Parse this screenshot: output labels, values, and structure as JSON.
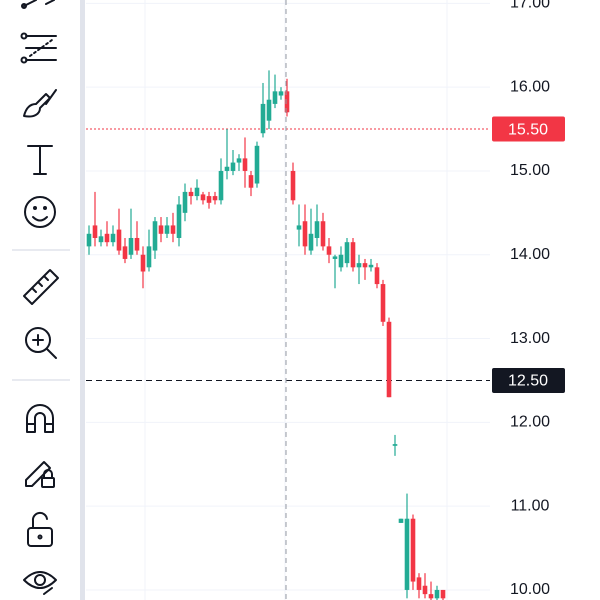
{
  "chart_data": {
    "type": "candlestick",
    "ylim": [
      9.88,
      17.04
    ],
    "yticks": [
      {
        "value": 17,
        "label": "17.00"
      },
      {
        "value": 16,
        "label": "16.00"
      },
      {
        "value": 15,
        "label": "15.00"
      },
      {
        "value": 14,
        "label": "14.00"
      },
      {
        "value": 13,
        "label": "13.00"
      },
      {
        "value": 12,
        "label": "12.00"
      },
      {
        "value": 11,
        "label": "11.00"
      },
      {
        "value": 10,
        "label": "10.00"
      }
    ],
    "grid": true,
    "up_color": "#22ab94",
    "down_color": "#f23645",
    "price_line": {
      "value": 15.5,
      "label": "15.50",
      "color": "#f23645"
    },
    "crosshair": {
      "value": 12.5,
      "label": "12.50",
      "color": "#131722"
    },
    "open": [
      14.1,
      14.35,
      14.15,
      14.25,
      14.15,
      14.3,
      14.1,
      14.0,
      14.2,
      14.0,
      13.85,
      14.05,
      14.35,
      14.25,
      14.35,
      14.2,
      14.5,
      14.75,
      14.7,
      14.72,
      14.7,
      14.7,
      14.65,
      15.0,
      15.0,
      15.1,
      15.15,
      14.95,
      14.85,
      15.45,
      15.6,
      15.8,
      15.9,
      15.95,
      15.0,
      14.3,
      14.4,
      14.05,
      14.2,
      14.4,
      14.1,
      13.95,
      13.85,
      13.9,
      14.15,
      13.85,
      13.9,
      13.85,
      13.85,
      13.65,
      13.2,
      11.72,
      10.8,
      10.0,
      10.85,
      10.15,
      10.05,
      9.95,
      9.9,
      10.0
    ],
    "high": [
      14.35,
      14.75,
      14.3,
      14.4,
      14.35,
      14.55,
      14.2,
      14.55,
      14.4,
      14.1,
      14.3,
      14.45,
      14.45,
      14.45,
      14.5,
      14.7,
      14.85,
      14.8,
      14.9,
      14.75,
      14.75,
      14.75,
      15.15,
      15.5,
      15.25,
      15.2,
      15.4,
      15.0,
      15.35,
      16.05,
      16.2,
      16.15,
      16.0,
      16.1,
      15.1,
      14.6,
      14.6,
      14.55,
      14.6,
      14.5,
      14.2,
      14.0,
      14.1,
      14.2,
      14.2,
      14.0,
      13.95,
      13.95,
      13.9,
      13.7,
      13.25,
      11.85,
      10.85,
      11.15,
      10.9,
      10.2,
      10.2,
      10.1,
      10.05,
      10.0
    ],
    "low": [
      14.0,
      14.1,
      14.1,
      14.1,
      14.1,
      14.0,
      13.9,
      13.95,
      14.0,
      13.6,
      13.8,
      13.95,
      14.15,
      14.2,
      14.15,
      14.1,
      14.4,
      14.6,
      14.65,
      14.6,
      14.55,
      14.6,
      14.6,
      14.9,
      14.95,
      15.0,
      14.8,
      14.7,
      14.8,
      15.4,
      15.5,
      15.75,
      15.85,
      15.65,
      14.6,
      14.1,
      14.0,
      14.0,
      14.1,
      14.05,
      13.9,
      13.6,
      13.8,
      13.85,
      13.8,
      13.65,
      13.7,
      13.8,
      13.6,
      13.15,
      12.3,
      11.6,
      10.8,
      9.9,
      10.0,
      9.9,
      9.9,
      9.85,
      9.85,
      9.85
    ],
    "close": [
      14.25,
      14.2,
      14.22,
      14.15,
      14.25,
      14.05,
      13.95,
      14.2,
      14.05,
      13.8,
      14.1,
      14.4,
      14.25,
      14.35,
      14.25,
      14.6,
      14.75,
      14.7,
      14.8,
      14.65,
      14.62,
      14.65,
      15.0,
      15.05,
      15.1,
      15.15,
      15.0,
      14.8,
      15.3,
      15.8,
      15.85,
      15.95,
      15.95,
      15.7,
      14.65,
      14.35,
      14.1,
      14.25,
      14.4,
      14.1,
      14.0,
      13.98,
      14.0,
      14.15,
      13.85,
      13.9,
      13.85,
      13.88,
      13.65,
      13.2,
      12.3,
      11.74,
      10.85,
      10.85,
      10.1,
      10.0,
      9.95,
      9.9,
      10.0,
      9.9
    ]
  }
}
